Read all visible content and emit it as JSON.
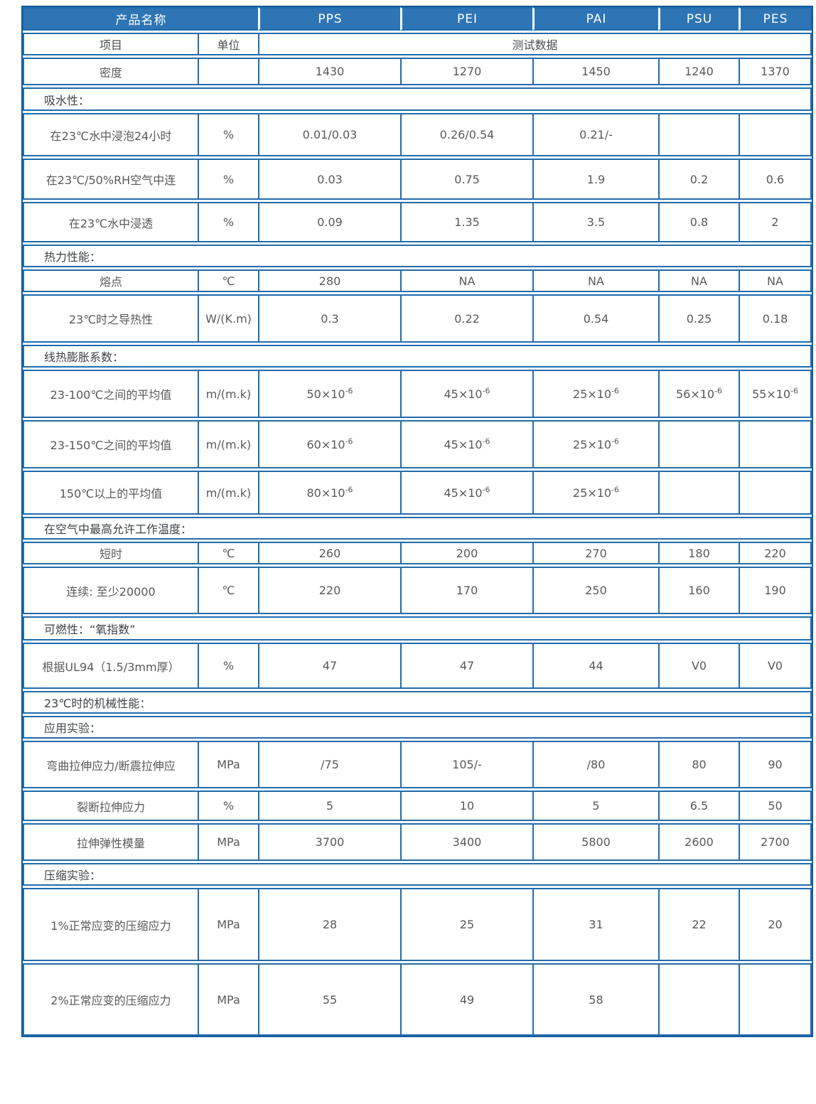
{
  "colors": {
    "header_bg": "#2e75b6",
    "header_text": "#ffffff",
    "grid_border": "#1f6cae",
    "outer_border": "#17599c",
    "cell_text": "#58595b",
    "section_text": "#3e4347"
  },
  "chart_data": {
    "type": "table",
    "product_header": "产品名称",
    "materials": [
      "PPS",
      "PEI",
      "PAI",
      "PSU",
      "PES"
    ],
    "item_header": "项目",
    "unit_header": "单位",
    "data_header": "测试数据",
    "rows": [
      {
        "kind": "data",
        "label": "密度",
        "unit": "",
        "values": [
          "1430",
          "1270",
          "1450",
          "1240",
          "1370"
        ]
      },
      {
        "kind": "section",
        "label": "吸水性："
      },
      {
        "kind": "data",
        "label": "在23℃水中浸泡24小时",
        "unit": "%",
        "values": [
          "0.01/0.03",
          "0.26/0.54",
          "0.21/-",
          "",
          ""
        ]
      },
      {
        "kind": "data",
        "label": "在23℃/50%RH空气中连",
        "unit": "%",
        "values": [
          "0.03",
          "0.75",
          "1.9",
          "0.2",
          "0.6"
        ]
      },
      {
        "kind": "data",
        "label": "在23℃水中浸透",
        "unit": "%",
        "values": [
          "0.09",
          "1.35",
          "3.5",
          "0.8",
          "2"
        ]
      },
      {
        "kind": "section",
        "label": "热力性能："
      },
      {
        "kind": "data",
        "label": "熔点",
        "unit": "℃",
        "values": [
          "280",
          "NA",
          "NA",
          "NA",
          "NA"
        ]
      },
      {
        "kind": "data",
        "label": "23℃时之导热性",
        "unit": "W/(K.m)",
        "values": [
          "0.3",
          "0.22",
          "0.54",
          "0.25",
          "0.18"
        ]
      },
      {
        "kind": "section",
        "label": "线热膨胀系数："
      },
      {
        "kind": "data",
        "label": "23-100℃之间的平均值",
        "unit": "m/(m.k)",
        "values": [
          "50×10^-6",
          "45×10^-6",
          "25×10^-6",
          "56×10^-6",
          "55×10^-6"
        ]
      },
      {
        "kind": "data",
        "label": "23-150℃之间的平均值",
        "unit": "m/(m.k)",
        "values": [
          "60×10^-6",
          "45×10^-6",
          "25×10^-6",
          "",
          ""
        ]
      },
      {
        "kind": "data",
        "label": "150℃以上的平均值",
        "unit": "m/(m.k)",
        "values": [
          "80×10^-6",
          "45×10^-6",
          "25×10^-6",
          "",
          ""
        ]
      },
      {
        "kind": "section",
        "label": "在空气中最高允许工作温度："
      },
      {
        "kind": "data",
        "label": "短时",
        "unit": "℃",
        "values": [
          "260",
          "200",
          "270",
          "180",
          "220"
        ]
      },
      {
        "kind": "data",
        "label": "连续: 至少20000",
        "unit": "℃",
        "values": [
          "220",
          "170",
          "250",
          "160",
          "190"
        ]
      },
      {
        "kind": "section",
        "label": "可燃性：“氧指数”"
      },
      {
        "kind": "data",
        "label": "根据UL94（1.5/3mm厚）",
        "unit": "%",
        "values": [
          "47",
          "47",
          "44",
          "V0",
          "V0"
        ]
      },
      {
        "kind": "section",
        "label": "23℃时的机械性能："
      },
      {
        "kind": "section",
        "label": "应用实验："
      },
      {
        "kind": "data",
        "label": "弯曲拉伸应力/断震拉伸应",
        "unit": "MPa",
        "values": [
          "/75",
          "105/-",
          "/80",
          "80",
          "90"
        ]
      },
      {
        "kind": "data",
        "label": "裂断拉伸应力",
        "unit": "%",
        "values": [
          "5",
          "10",
          "5",
          "6.5",
          "50"
        ]
      },
      {
        "kind": "data",
        "label": "拉伸弹性模量",
        "unit": "MPa",
        "values": [
          "3700",
          "3400",
          "5800",
          "2600",
          "2700"
        ]
      },
      {
        "kind": "section",
        "label": "压缩实验："
      },
      {
        "kind": "data",
        "label": "1%正常应变的压缩应力",
        "unit": "MPa",
        "values": [
          "28",
          "25",
          "31",
          "22",
          "20"
        ]
      },
      {
        "kind": "data",
        "label": "2%正常应变的压缩应力",
        "unit": "MPa",
        "values": [
          "55",
          "49",
          "58",
          "",
          ""
        ]
      }
    ]
  }
}
